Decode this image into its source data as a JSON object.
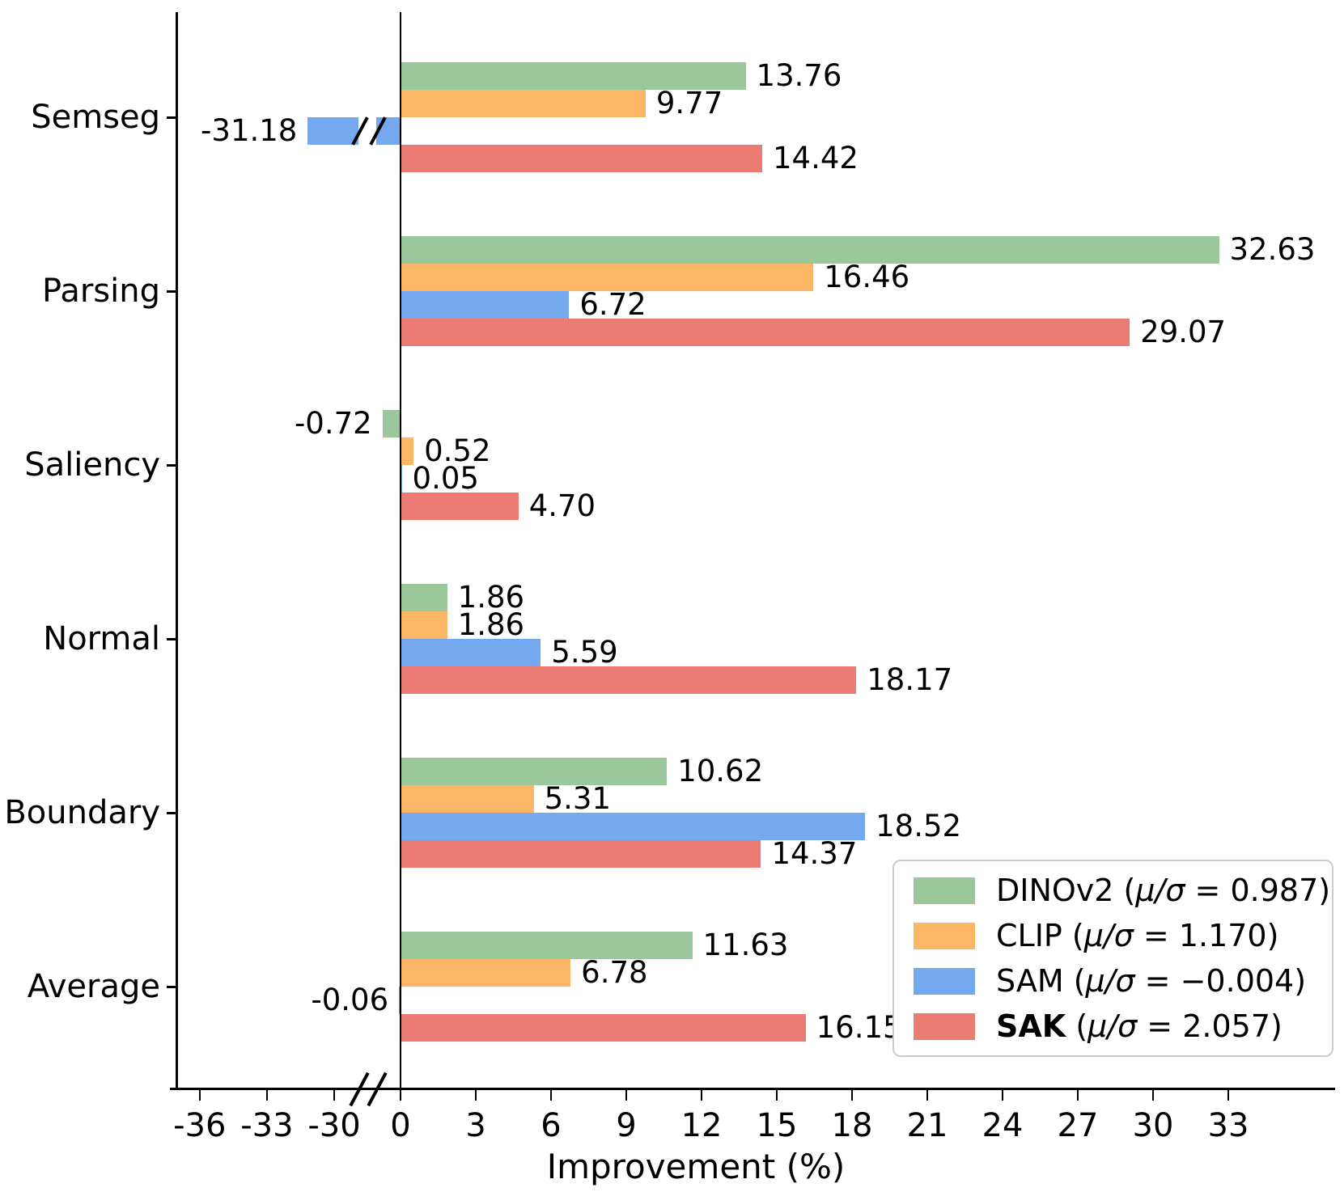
{
  "chart_data": {
    "type": "bar",
    "orientation": "horizontal",
    "xlabel": "Improvement (%)",
    "categories": [
      "Semseg",
      "Parsing",
      "Saliency",
      "Normal",
      "Boundary",
      "Average"
    ],
    "series": [
      {
        "name": "DINOv2",
        "color": "#9BC89B",
        "legend_stat": "0.987",
        "bold": false,
        "values": [
          13.76,
          32.63,
          -0.72,
          1.86,
          10.62,
          11.63
        ],
        "labels": [
          "13.76",
          "32.63",
          "-0.72",
          "1.86",
          "10.62",
          "11.63"
        ]
      },
      {
        "name": "CLIP",
        "color": "#FDB666",
        "legend_stat": "1.170",
        "bold": false,
        "values": [
          9.77,
          16.46,
          0.52,
          1.86,
          5.31,
          6.78
        ],
        "labels": [
          "9.77",
          "16.46",
          "0.52",
          "1.86",
          "5.31",
          "6.78"
        ]
      },
      {
        "name": "SAM",
        "color": "#74A9F0",
        "legend_stat": "−0.004",
        "bold": false,
        "values": [
          -31.18,
          6.72,
          0.05,
          5.59,
          18.52,
          -0.06
        ],
        "labels": [
          "-31.18",
          "6.72",
          "0.05",
          "5.59",
          "18.52",
          "-0.06"
        ]
      },
      {
        "name": "SAK",
        "color": "#EC7B73",
        "legend_stat": "2.057",
        "bold": true,
        "values": [
          14.42,
          29.07,
          4.7,
          18.17,
          14.37,
          16.15
        ],
        "labels": [
          "14.42",
          "29.07",
          "4.70",
          "18.17",
          "14.37",
          "16.15"
        ]
      }
    ],
    "x_ticks": [
      -36,
      -33,
      -30,
      0,
      3,
      6,
      9,
      12,
      15,
      18,
      21,
      24,
      27,
      30,
      33
    ],
    "x_tick_labels": [
      "-36",
      "-33",
      "-30",
      "0",
      "3",
      "6",
      "9",
      "12",
      "15",
      "18",
      "21",
      "24",
      "27",
      "30",
      "33"
    ],
    "axis_break_between": [
      -30,
      0
    ],
    "grid": false,
    "legend": {
      "position": "lower right",
      "stat_symbol": "μ/σ",
      "paren_open": "(",
      "equals": "=",
      "paren_close": ")"
    }
  }
}
